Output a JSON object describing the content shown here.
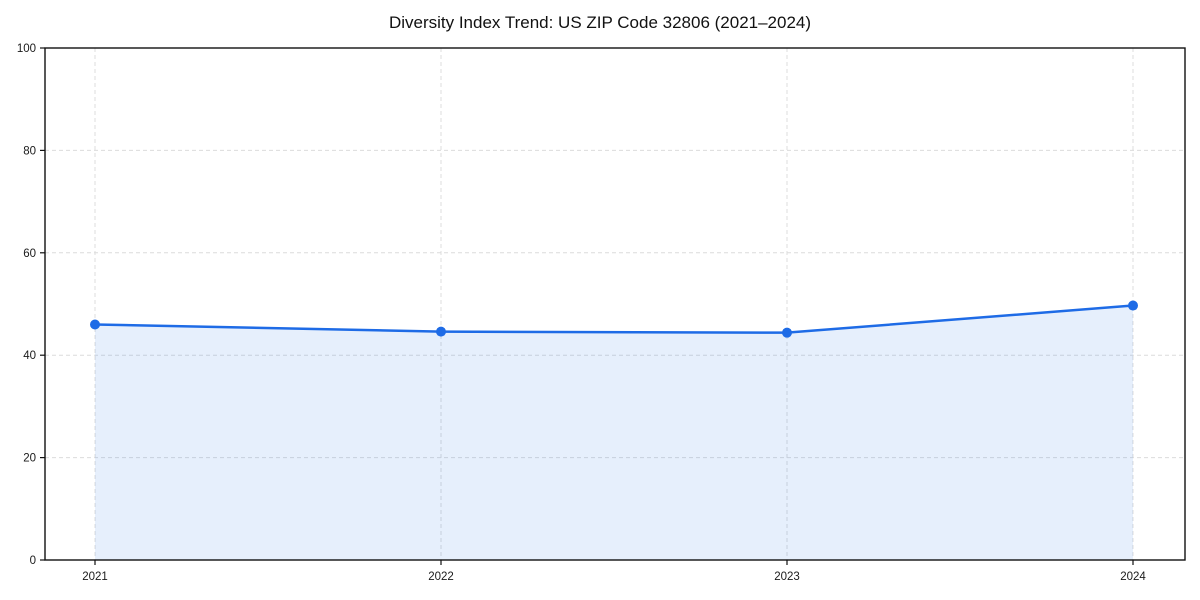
{
  "title": "Diversity Index Trend: US ZIP Code 32806 (2021–2024)",
  "chart_data": {
    "type": "area",
    "title": "Diversity Index Trend: US ZIP Code 32806 (2021–2024)",
    "x": [
      "2021",
      "2022",
      "2023",
      "2024"
    ],
    "series": [
      {
        "name": "Diversity Index",
        "values": [
          46.0,
          44.6,
          44.4,
          49.7
        ]
      }
    ],
    "xlabel": "",
    "ylabel": "",
    "ylim": [
      0,
      100
    ],
    "yticks": [
      0,
      20,
      40,
      60,
      80,
      100
    ],
    "grid": "dashed, both axes",
    "legend": "none",
    "marker": "filled circle",
    "area_fill": true,
    "colors": {
      "line": "#1e6be6",
      "marker": "#1e6be6",
      "area": "rgba(30,107,230,0.11)",
      "grid": "#dcdcdc",
      "spine": "#111111",
      "tick_text": "#1a1a1a",
      "background": "#ffffff"
    }
  }
}
